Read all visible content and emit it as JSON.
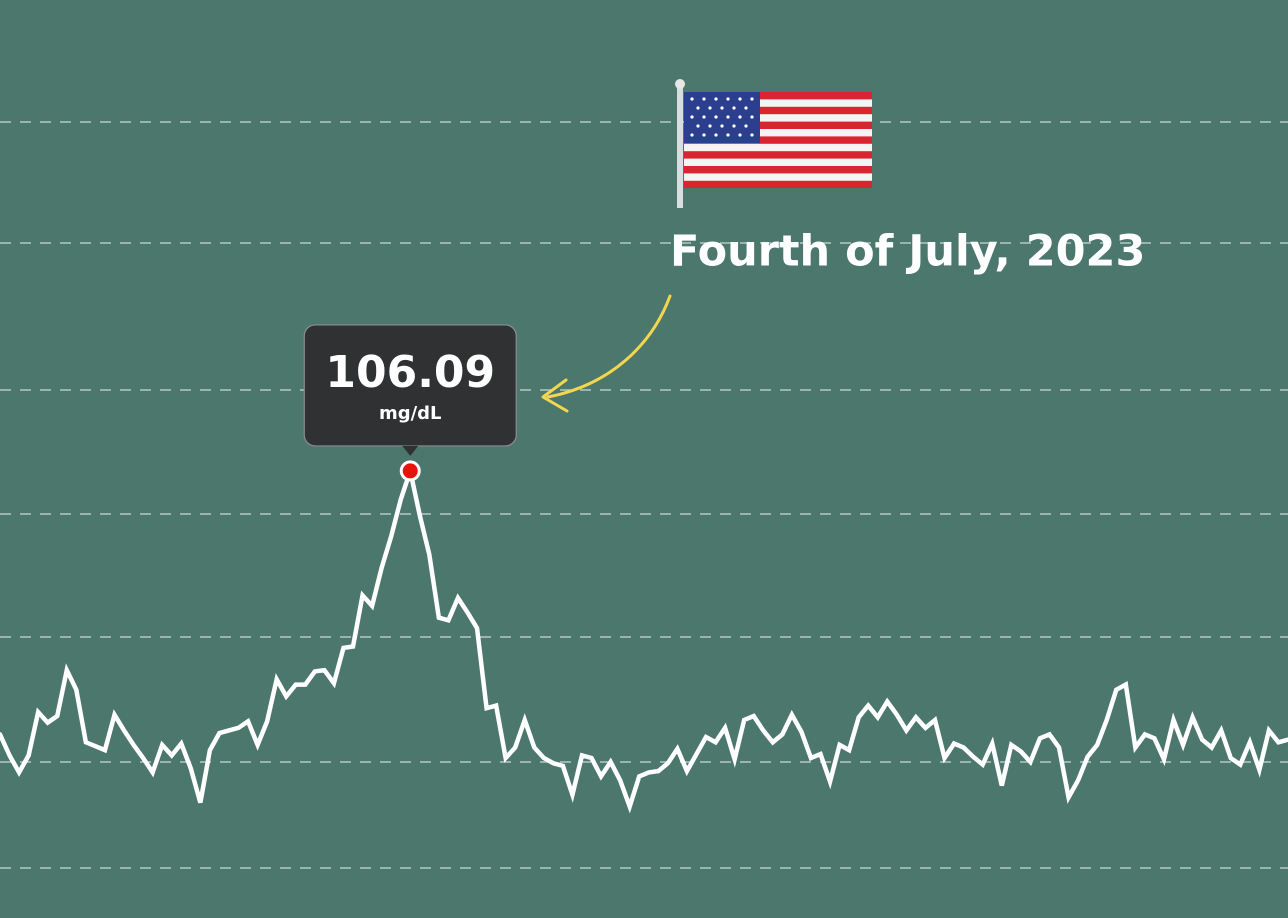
{
  "chart_data": {
    "type": "line",
    "annotation": "Fourth of July, 2023",
    "tooltip": {
      "value": 106.09,
      "unit": "mg/dL"
    },
    "color": "#ffffff",
    "marker_color": "#e8140c",
    "ylim": [
      72,
      142
    ],
    "values": [
      86.0,
      84.4,
      83.1,
      84.4,
      87.7,
      86.9,
      87.4,
      90.9,
      89.4,
      85.4,
      85.1,
      84.8,
      87.5,
      86.3,
      85.2,
      84.2,
      83.1,
      85.2,
      84.4,
      85.3,
      83.4,
      80.8,
      84.8,
      86.1,
      86.3,
      86.5,
      87.0,
      85.2,
      87.0,
      90.2,
      88.9,
      89.8,
      89.8,
      90.8,
      90.9,
      89.9,
      92.6,
      92.7,
      96.6,
      95.8,
      98.7,
      101.1,
      103.9,
      106.09,
      102.7,
      99.7,
      94.9,
      94.7,
      96.4,
      95.3,
      94.1,
      88.0,
      88.2,
      84.2,
      85.0,
      87.1,
      85.0,
      84.2,
      83.8,
      83.6,
      81.4,
      84.4,
      84.2,
      82.8,
      83.9,
      82.5,
      80.5,
      82.8,
      83.1,
      83.2,
      83.8,
      84.9,
      83.2,
      84.5,
      85.8,
      85.4,
      86.5,
      84.1,
      87.1,
      87.4,
      86.3,
      85.4,
      86.0,
      87.5,
      86.2,
      84.2,
      84.5,
      82.4,
      85.2,
      84.8,
      87.3,
      88.2,
      87.3,
      88.5,
      87.5,
      86.3,
      87.3,
      86.5,
      87.1,
      84.2,
      85.3,
      85.0,
      84.3,
      83.7,
      85.3,
      82.1,
      85.2,
      84.7,
      83.9,
      85.7,
      86.0,
      85.0,
      81.2,
      82.5,
      84.3,
      85.2,
      87.1,
      89.4,
      89.8,
      85.0,
      86.0,
      85.7,
      84.1,
      87.1,
      85.2,
      87.3,
      85.6,
      85.0,
      86.3,
      84.2,
      83.7,
      85.4,
      83.3,
      86.3,
      85.4,
      85.6
    ]
  }
}
